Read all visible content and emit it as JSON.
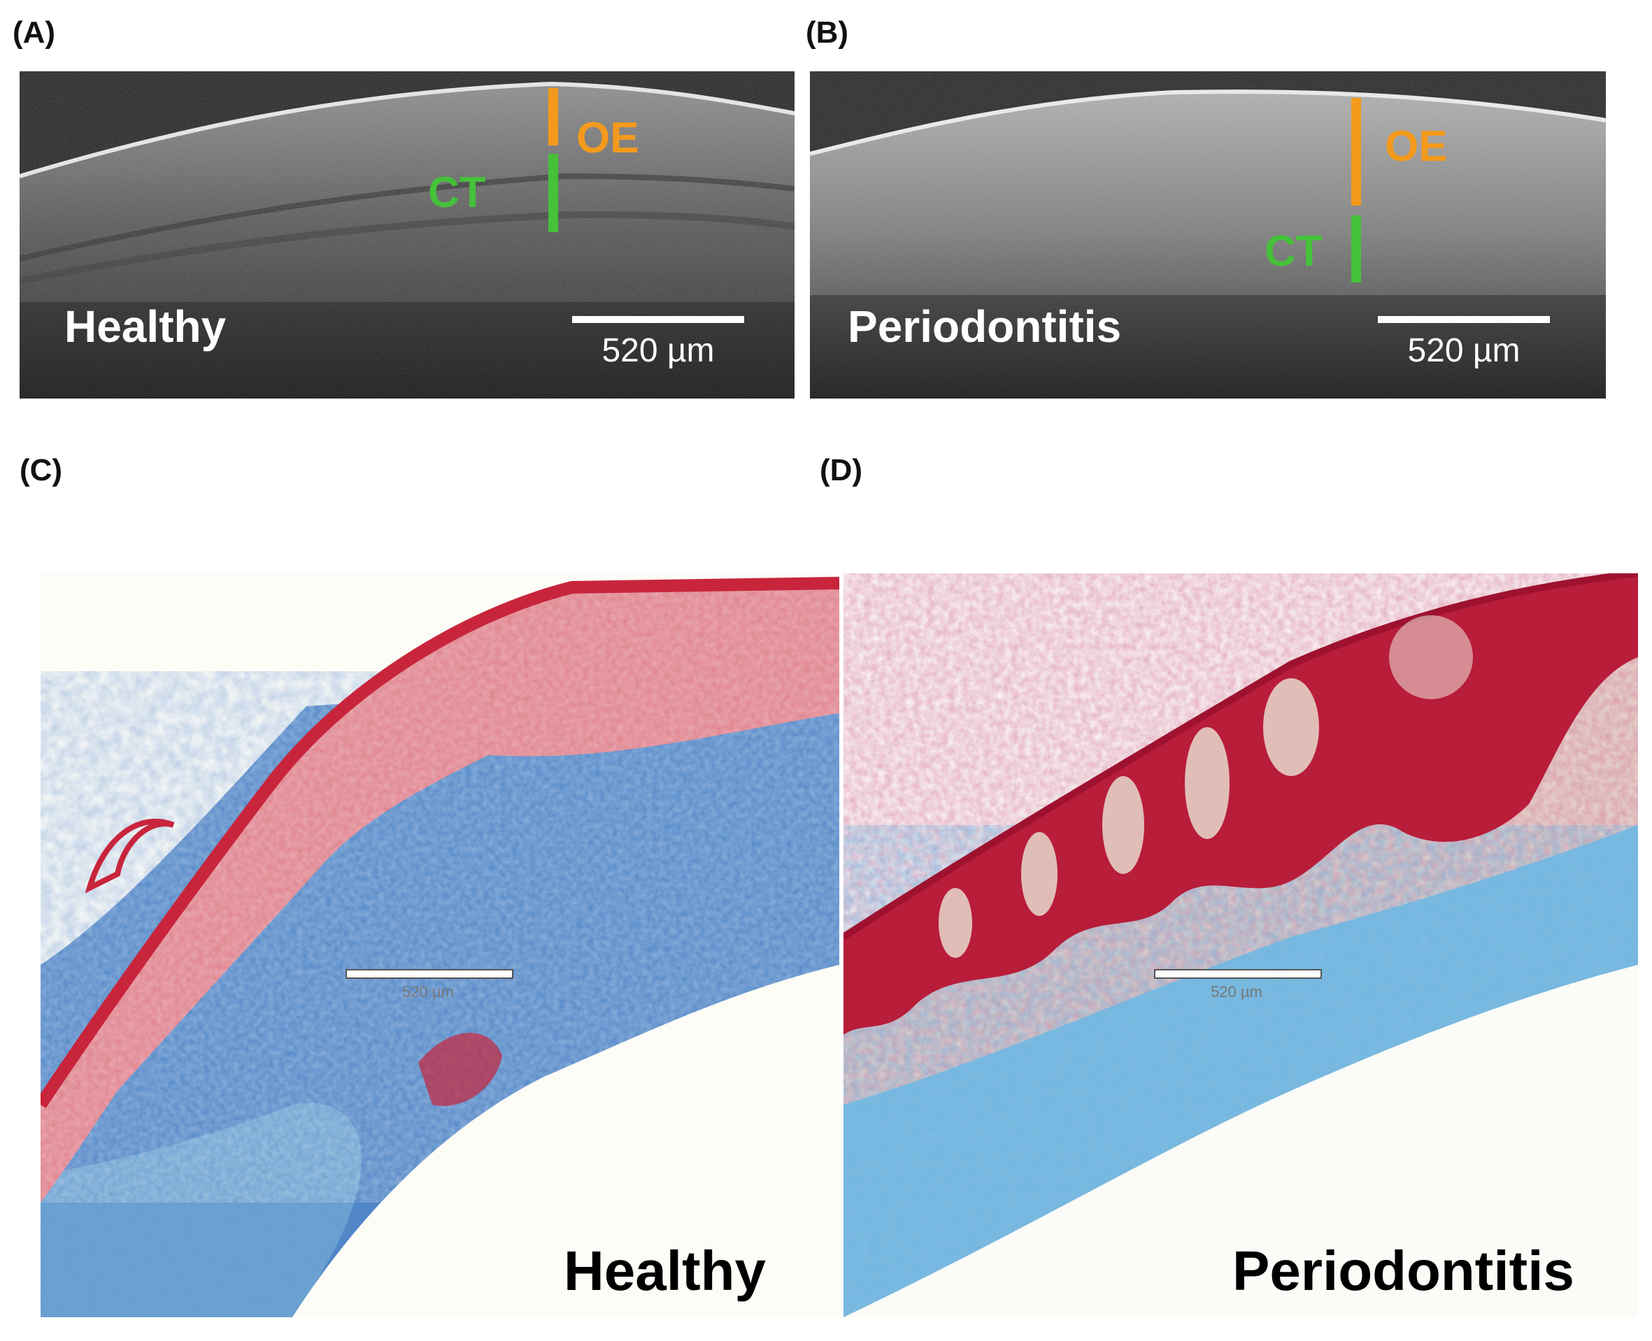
{
  "panels": {
    "a": {
      "letter": "(A)",
      "condition": "Healthy",
      "oe_label": "OE",
      "ct_label": "CT",
      "scale": "520 µm"
    },
    "b": {
      "letter": "(B)",
      "condition": "Periodontitis",
      "oe_label": "OE",
      "ct_label": "CT",
      "scale": "520 µm"
    },
    "c": {
      "letter": "(C)",
      "condition": "Healthy",
      "scale": "520 µm"
    },
    "d": {
      "letter": "(D)",
      "condition": "Periodontitis",
      "scale": "520 µm"
    }
  },
  "colors": {
    "oe": "#f39a1c",
    "ct": "#45c13a",
    "epithelium_red": "#c8253c",
    "connective_blue": "#2f74c4"
  }
}
